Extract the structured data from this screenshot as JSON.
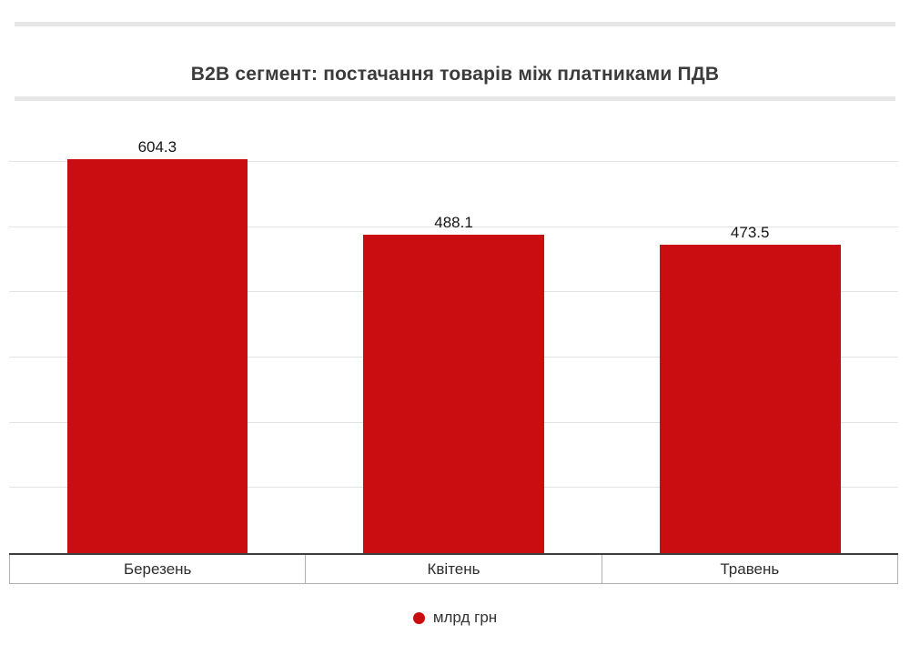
{
  "title": {
    "text": "B2B сегмент: постачання товарів між платниками ПДВ",
    "color": "#3b3b3b"
  },
  "chart_data": {
    "type": "bar",
    "title": "B2B сегмент: постачання товарів між платниками ПДВ",
    "categories": [
      "Березень",
      "Квітень",
      "Травень"
    ],
    "values": [
      604.3,
      488.1,
      473.5
    ],
    "series_label": "млрд грн",
    "xlabel": "",
    "ylabel": "",
    "ylim": [
      0,
      681
    ],
    "axis_max": 681,
    "grid_step": 100,
    "grid_max": 600,
    "grid_on": true,
    "legend_position": "bottom",
    "bar_color": "#c90d10",
    "gridline_color": "#e3e3e3",
    "axis_color": "#3d3d3d",
    "value_label_color": "#141414"
  },
  "legend": {
    "label": "млрд грн",
    "marker_color": "#c90d10"
  },
  "decor": {
    "rule_color": "#e6e6e6"
  }
}
